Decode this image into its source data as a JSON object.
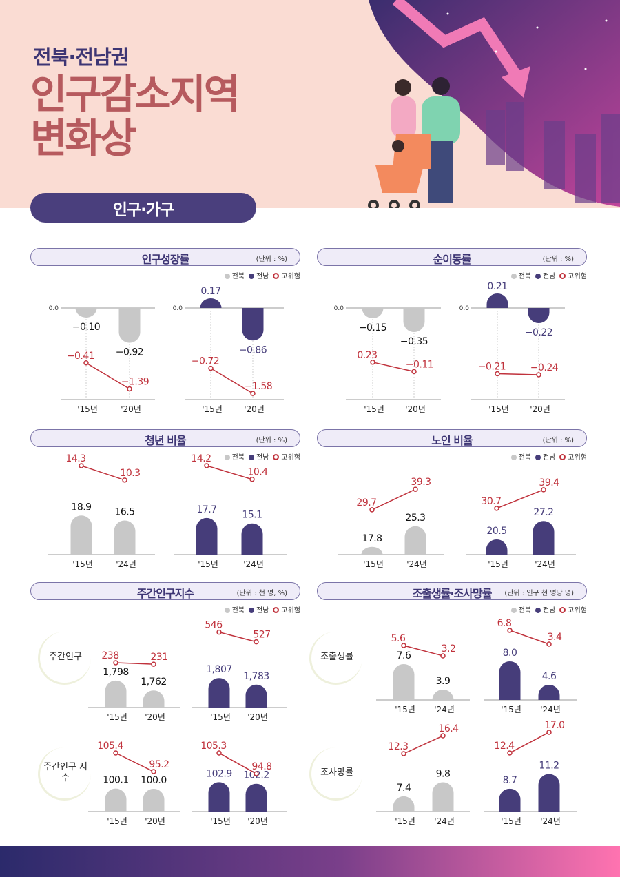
{
  "header": {
    "subtitle": "전북·전남권",
    "title_line1": "인구감소지역",
    "title_line2": "변화상",
    "section": "인구·가구"
  },
  "colors": {
    "jeonbuk": "#c8c8c8",
    "jeonnam": "#463d7a",
    "risk": "#c0323c",
    "title": "#b65a5e"
  },
  "legend": [
    {
      "label": "전북",
      "icon": "filled-gray-dot"
    },
    {
      "label": "전남",
      "icon": "filled-purple-dot"
    },
    {
      "label": "고위험",
      "icon": "hollow-red-dot"
    }
  ],
  "chart_data": [
    {
      "type": "bar+line",
      "title": "인구성장률",
      "unit": "(단위 : %)",
      "zero_label": "0.0",
      "rows": [
        {
          "label": "",
          "groups": [
            {
              "region": "전북",
              "years": [
                "'15년",
                "'20년"
              ],
              "bars": [
                "-0.10",
                "-0.92"
              ],
              "risk": [
                "-0.41",
                "-1.39"
              ]
            },
            {
              "region": "전남",
              "years": [
                "'15년",
                "'20년"
              ],
              "bars": [
                "0.17",
                "-0.86"
              ],
              "risk": [
                "-0.72",
                "-1.58"
              ]
            }
          ]
        }
      ]
    },
    {
      "type": "bar+line",
      "title": "순이동률",
      "unit": "(단위 : %)",
      "zero_label": "0.0",
      "rows": [
        {
          "label": "",
          "groups": [
            {
              "region": "전북",
              "years": [
                "'15년",
                "'20년"
              ],
              "bars": [
                "-0.15",
                "-0.35"
              ],
              "risk": [
                "0.23",
                "-0.11"
              ]
            },
            {
              "region": "전남",
              "years": [
                "'15년",
                "'20년"
              ],
              "bars": [
                "0.21",
                "-0.22"
              ],
              "risk": [
                "-0.21",
                "-0.24"
              ]
            }
          ]
        }
      ]
    },
    {
      "type": "bar+line",
      "title": "청년 비율",
      "unit": "(단위 : %)",
      "rows": [
        {
          "label": "",
          "groups": [
            {
              "region": "전북",
              "years": [
                "'15년",
                "'24년"
              ],
              "bars": [
                "18.9",
                "16.5"
              ],
              "risk": [
                "14.3",
                "10.3"
              ]
            },
            {
              "region": "전남",
              "years": [
                "'15년",
                "'24년"
              ],
              "bars": [
                "17.7",
                "15.1"
              ],
              "risk": [
                "14.2",
                "10.4"
              ]
            }
          ]
        }
      ]
    },
    {
      "type": "bar+line",
      "title": "노인 비율",
      "unit": "(단위 : %)",
      "rows": [
        {
          "label": "",
          "groups": [
            {
              "region": "전북",
              "years": [
                "'15년",
                "'24년"
              ],
              "bars": [
                "17.8",
                "25.3"
              ],
              "risk": [
                "29.7",
                "39.3"
              ]
            },
            {
              "region": "전남",
              "years": [
                "'15년",
                "'24년"
              ],
              "bars": [
                "20.5",
                "27.2"
              ],
              "risk": [
                "30.7",
                "39.4"
              ]
            }
          ]
        }
      ]
    },
    {
      "type": "bar+line",
      "title": "주간인구지수",
      "unit": "(단위 : 천 명, %)",
      "rows": [
        {
          "label": "주간인구",
          "groups": [
            {
              "region": "전북",
              "years": [
                "'15년",
                "'20년"
              ],
              "bars": [
                "1,798",
                "1,762"
              ],
              "risk": [
                "238",
                "231"
              ]
            },
            {
              "region": "전남",
              "years": [
                "'15년",
                "'20년"
              ],
              "bars": [
                "1,807",
                "1,783"
              ],
              "risk": [
                "546",
                "527"
              ]
            }
          ]
        },
        {
          "label": "주간인구 지수",
          "groups": [
            {
              "region": "전북",
              "years": [
                "'15년",
                "'20년"
              ],
              "bars": [
                "100.1",
                "100.0"
              ],
              "risk": [
                "105.4",
                "95.2"
              ]
            },
            {
              "region": "전남",
              "years": [
                "'15년",
                "'20년"
              ],
              "bars": [
                "102.9",
                "102.2"
              ],
              "risk": [
                "105.3",
                "94.8"
              ]
            }
          ]
        }
      ]
    },
    {
      "type": "bar+line",
      "title": "조출생률·조사망률",
      "unit": "(단위 : 인구 천 명당 명)",
      "rows": [
        {
          "label": "조출생률",
          "groups": [
            {
              "region": "전북",
              "years": [
                "'15년",
                "'24년"
              ],
              "bars": [
                "7.6",
                "3.9"
              ],
              "risk": [
                "5.6",
                "3.2"
              ]
            },
            {
              "region": "전남",
              "years": [
                "'15년",
                "'24년"
              ],
              "bars": [
                "8.0",
                "4.6"
              ],
              "risk": [
                "6.8",
                "3.4"
              ]
            }
          ]
        },
        {
          "label": "조사망률",
          "groups": [
            {
              "region": "전북",
              "years": [
                "'15년",
                "'24년"
              ],
              "bars": [
                "7.4",
                "9.8"
              ],
              "risk": [
                "12.3",
                "16.4"
              ]
            },
            {
              "region": "전남",
              "years": [
                "'15년",
                "'24년"
              ],
              "bars": [
                "8.7",
                "11.2"
              ],
              "risk": [
                "12.4",
                "17.0"
              ]
            }
          ]
        }
      ]
    }
  ]
}
